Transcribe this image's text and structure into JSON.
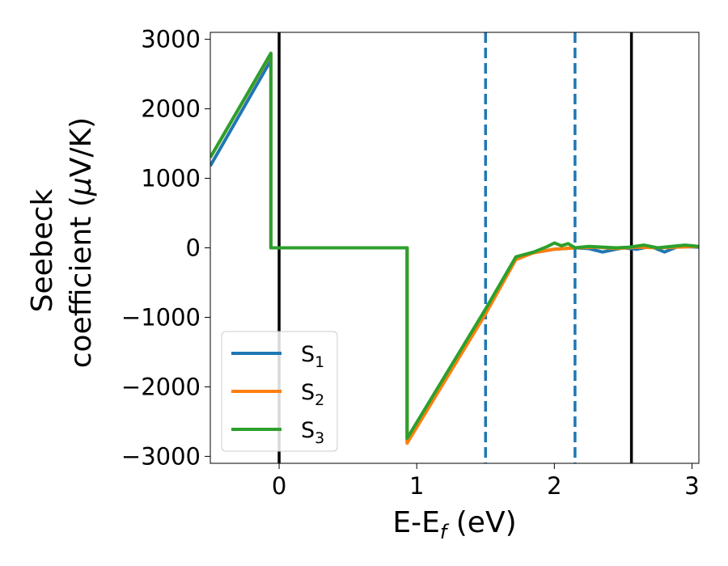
{
  "chart_data": {
    "type": "line",
    "title": "",
    "xlabel_main": "E-E",
    "xlabel_sub": "f",
    "xlabel_unit": " (eV)",
    "ylabel_line1": "Seebeck",
    "ylabel_line2_pre": "coefficient  (",
    "ylabel_mu": "μ",
    "ylabel_line2_post": "V/K)",
    "xlim": [
      -0.5,
      3.05
    ],
    "ylim": [
      -3100,
      3100
    ],
    "x_ticks": [
      0,
      1,
      2,
      3
    ],
    "x_tick_labels": [
      "0",
      "1",
      "2",
      "3"
    ],
    "y_ticks": [
      -3000,
      -2000,
      -1000,
      0,
      1000,
      2000,
      3000
    ],
    "y_tick_labels": [
      "−3000",
      "−2000",
      "−1000",
      "0",
      "1000",
      "2000",
      "3000"
    ],
    "grid": false,
    "legend_position": "lower-left",
    "vlines_solid": [
      0.0,
      2.56
    ],
    "vlines_dashed": [
      1.5,
      2.15
    ],
    "series": [
      {
        "name": "S",
        "sub": "1",
        "color": "#1f77b4",
        "x": [
          -0.5,
          -0.06,
          -0.06,
          0.93,
          0.93,
          1.5,
          1.72,
          1.85,
          2.0,
          2.15,
          2.25,
          2.35,
          2.5,
          2.6,
          2.7,
          2.8,
          2.9,
          3.05
        ],
        "y": [
          1180,
          2700,
          0,
          0,
          -2780,
          -930,
          -150,
          -70,
          -20,
          0,
          -10,
          -60,
          0,
          -20,
          20,
          -60,
          20,
          10
        ]
      },
      {
        "name": "S",
        "sub": "2",
        "color": "#ff7f0e",
        "x": [
          -0.5,
          -0.06,
          -0.06,
          0.93,
          0.93,
          1.5,
          1.72,
          1.85,
          2.0,
          2.15,
          2.3,
          2.45,
          2.6,
          2.75,
          2.9,
          3.05
        ],
        "y": [
          1300,
          2790,
          0,
          0,
          -2810,
          -950,
          -170,
          -70,
          -20,
          0,
          10,
          -10,
          10,
          0,
          10,
          20
        ]
      },
      {
        "name": "S",
        "sub": "3",
        "color": "#2ca02c",
        "x": [
          -0.5,
          -0.06,
          -0.06,
          0.93,
          0.93,
          1.5,
          1.72,
          1.85,
          1.95,
          2.0,
          2.05,
          2.1,
          2.15,
          2.25,
          2.35,
          2.45,
          2.55,
          2.65,
          2.75,
          2.85,
          2.95,
          3.05
        ],
        "y": [
          1300,
          2800,
          0,
          0,
          -2740,
          -880,
          -130,
          -60,
          20,
          70,
          30,
          60,
          0,
          20,
          10,
          0,
          10,
          40,
          0,
          20,
          40,
          20
        ]
      }
    ]
  }
}
